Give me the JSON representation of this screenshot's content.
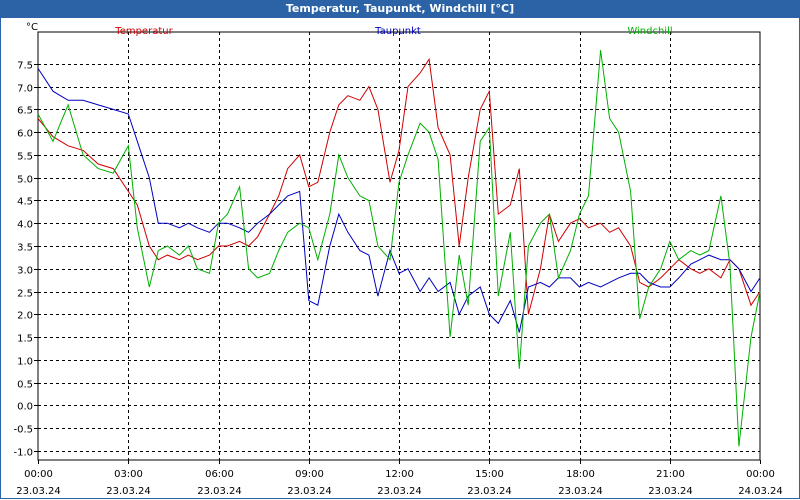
{
  "window": {
    "title": "Temperatur, Taupunkt, Windchill [°C]"
  },
  "chart_data": {
    "type": "line",
    "title": "Temperatur, Taupunkt, Windchill [°C]",
    "ylabel": "°C",
    "xlabel": "",
    "ylim": [
      -1.2,
      8.2
    ],
    "xlim": [
      0,
      24
    ],
    "grid": true,
    "yticks": [
      -1.0,
      -0.5,
      0.0,
      0.5,
      1.0,
      1.5,
      2.0,
      2.5,
      3.0,
      3.5,
      4.0,
      4.5,
      5.0,
      5.5,
      6.0,
      6.5,
      7.0,
      7.5
    ],
    "ytick_labels": [
      "-1.0",
      "-0.5",
      "0.0",
      "0.5",
      "1.0",
      "1.5",
      "2.0",
      "2.5",
      "3.0",
      "3.5",
      "4.0",
      "4.5",
      "5.0",
      "5.5",
      "6.0",
      "6.5",
      "7.0",
      "7.5"
    ],
    "xticks": [
      {
        "hour": 0,
        "time": "00:00",
        "date": "23.03.24"
      },
      {
        "hour": 3,
        "time": "03:00",
        "date": "23.03.24"
      },
      {
        "hour": 6,
        "time": "06:00",
        "date": "23.03.24"
      },
      {
        "hour": 9,
        "time": "09:00",
        "date": "23.03.24"
      },
      {
        "hour": 12,
        "time": "12:00",
        "date": "23.03.24"
      },
      {
        "hour": 15,
        "time": "15:00",
        "date": "23.03.24"
      },
      {
        "hour": 18,
        "time": "18:00",
        "date": "23.03.24"
      },
      {
        "hour": 21,
        "time": "21:00",
        "date": "23.03.24"
      },
      {
        "hour": 24,
        "time": "00:00",
        "date": "24.03.24"
      }
    ],
    "series": [
      {
        "name": "Temperatur",
        "color": "#d00000",
        "x": [
          0,
          0.5,
          1,
          1.5,
          2,
          2.5,
          3,
          3.3,
          3.7,
          4,
          4.3,
          4.7,
          5,
          5.3,
          5.7,
          6,
          6.3,
          6.7,
          7,
          7.3,
          7.7,
          8,
          8.3,
          8.7,
          9,
          9.3,
          9.7,
          10,
          10.3,
          10.7,
          11,
          11.3,
          11.7,
          12,
          12.3,
          12.7,
          13,
          13.3,
          13.7,
          14,
          14.3,
          14.7,
          15,
          15.3,
          15.7,
          16,
          16.3,
          16.7,
          17,
          17.3,
          17.7,
          18,
          18.3,
          18.7,
          19,
          19.3,
          19.7,
          20,
          20.3,
          20.7,
          21,
          21.3,
          21.7,
          22,
          22.3,
          22.7,
          23,
          23.3,
          23.7,
          24
        ],
        "values": [
          6.3,
          5.9,
          5.7,
          5.6,
          5.3,
          5.2,
          4.7,
          4.4,
          3.5,
          3.2,
          3.3,
          3.2,
          3.3,
          3.2,
          3.3,
          3.5,
          3.5,
          3.6,
          3.5,
          3.7,
          4.2,
          4.6,
          5.2,
          5.5,
          4.8,
          4.9,
          6.0,
          6.6,
          6.8,
          6.7,
          7.0,
          6.5,
          4.9,
          5.6,
          7.0,
          7.3,
          7.6,
          6.1,
          5.5,
          3.5,
          5.0,
          6.5,
          6.9,
          4.2,
          4.4,
          5.2,
          2.0,
          3.0,
          4.2,
          3.6,
          4.0,
          4.1,
          3.9,
          4.0,
          3.8,
          3.9,
          3.5,
          2.7,
          2.6,
          2.8,
          3.0,
          3.2,
          3.0,
          2.9,
          3.0,
          2.8,
          3.2,
          3.0,
          2.2,
          2.5
        ]
      },
      {
        "name": "Taupunkt",
        "color": "#0000c0",
        "x": [
          0,
          0.5,
          1,
          1.5,
          2,
          2.5,
          3,
          3.3,
          3.7,
          4,
          4.3,
          4.7,
          5,
          5.3,
          5.7,
          6,
          6.3,
          6.7,
          7,
          7.3,
          7.7,
          8,
          8.3,
          8.7,
          9,
          9.3,
          9.7,
          10,
          10.3,
          10.7,
          11,
          11.3,
          11.7,
          12,
          12.3,
          12.7,
          13,
          13.3,
          13.7,
          14,
          14.3,
          14.7,
          15,
          15.3,
          15.7,
          16,
          16.3,
          16.7,
          17,
          17.3,
          17.7,
          18,
          18.3,
          18.7,
          19,
          19.3,
          19.7,
          20,
          20.3,
          20.7,
          21,
          21.3,
          21.7,
          22,
          22.3,
          22.7,
          23,
          23.3,
          23.7,
          24
        ],
        "values": [
          7.4,
          6.9,
          6.7,
          6.7,
          6.6,
          6.5,
          6.4,
          5.8,
          5.0,
          4.0,
          4.0,
          3.9,
          4.0,
          3.9,
          3.8,
          4.0,
          4.0,
          3.9,
          3.8,
          4.0,
          4.2,
          4.4,
          4.6,
          4.7,
          2.3,
          2.2,
          3.5,
          4.2,
          3.8,
          3.4,
          3.3,
          2.4,
          3.4,
          2.9,
          3.0,
          2.5,
          2.8,
          2.5,
          2.7,
          2.0,
          2.4,
          2.6,
          2.0,
          1.8,
          2.3,
          1.6,
          2.6,
          2.7,
          2.6,
          2.8,
          2.8,
          2.6,
          2.7,
          2.6,
          2.7,
          2.8,
          2.9,
          2.9,
          2.7,
          2.6,
          2.6,
          2.8,
          3.1,
          3.2,
          3.3,
          3.2,
          3.2,
          3.0,
          2.5,
          2.8
        ]
      },
      {
        "name": "Windchill",
        "color": "#00b000",
        "x": [
          0,
          0.5,
          1,
          1.5,
          2,
          2.5,
          3,
          3.3,
          3.7,
          4,
          4.3,
          4.7,
          5,
          5.3,
          5.7,
          6,
          6.3,
          6.7,
          7,
          7.3,
          7.7,
          8,
          8.3,
          8.7,
          9,
          9.3,
          9.7,
          10,
          10.3,
          10.7,
          11,
          11.3,
          11.7,
          12,
          12.3,
          12.7,
          13,
          13.3,
          13.7,
          14,
          14.3,
          14.7,
          15,
          15.3,
          15.7,
          16,
          16.3,
          16.7,
          17,
          17.3,
          17.7,
          18,
          18.3,
          18.7,
          19,
          19.3,
          19.7,
          20,
          20.3,
          20.7,
          21,
          21.3,
          21.7,
          22,
          22.3,
          22.7,
          23,
          23.3,
          23.7,
          24
        ],
        "values": [
          6.4,
          5.8,
          6.6,
          5.5,
          5.2,
          5.1,
          5.7,
          3.9,
          2.6,
          3.4,
          3.5,
          3.3,
          3.5,
          3.0,
          2.9,
          4.0,
          4.2,
          4.8,
          3.0,
          2.8,
          2.9,
          3.4,
          3.8,
          4.0,
          3.9,
          3.2,
          4.2,
          5.5,
          5.0,
          4.6,
          4.5,
          3.5,
          3.2,
          4.9,
          5.5,
          6.2,
          6.0,
          5.4,
          1.5,
          3.3,
          2.2,
          5.8,
          6.1,
          2.4,
          3.8,
          0.8,
          3.5,
          4.0,
          4.2,
          2.8,
          3.4,
          4.2,
          4.6,
          7.8,
          6.3,
          6.0,
          4.7,
          1.9,
          2.6,
          3.0,
          3.6,
          3.2,
          3.4,
          3.3,
          3.4,
          4.6,
          3.1,
          -0.9,
          1.5,
          2.5
        ]
      }
    ]
  }
}
